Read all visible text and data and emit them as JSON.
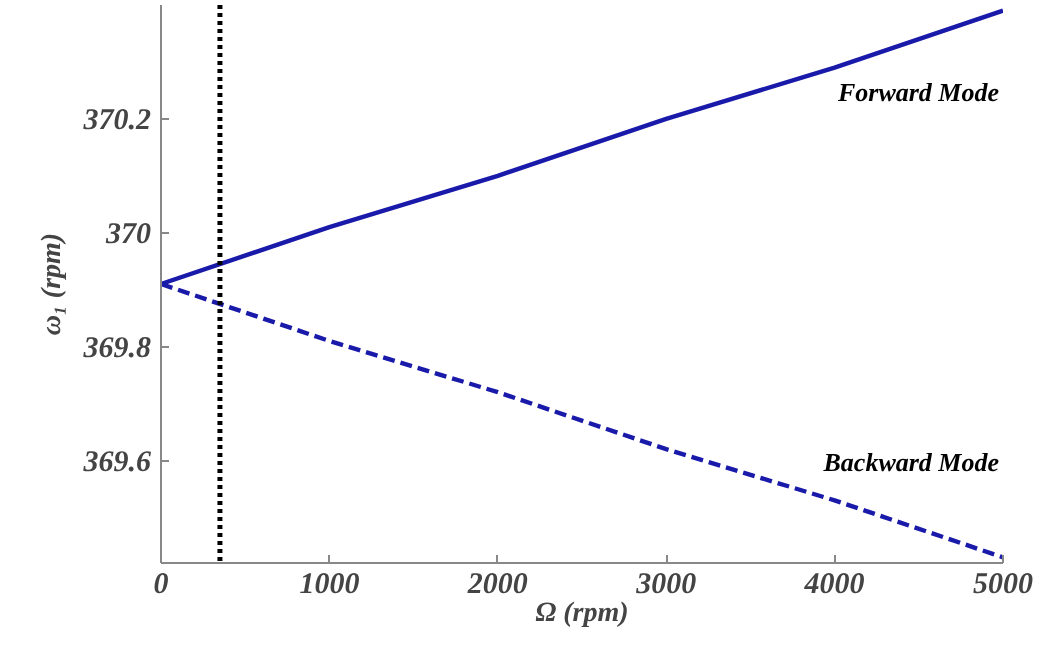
{
  "chart_data": {
    "type": "line",
    "xlabel": "Ω (rpm)",
    "ylabel": "ω₁ (rpm)",
    "x": [
      0,
      1000,
      2000,
      3000,
      4000,
      5000
    ],
    "series": [
      {
        "name": "Forward Mode",
        "color": "#1a1aaa",
        "line_style": "solid",
        "values": [
          369.91,
          370.01,
          370.1,
          370.2,
          370.29,
          370.39
        ]
      },
      {
        "name": "Backward Mode",
        "color": "#1a1aaa",
        "line_style": "dashed",
        "values": [
          369.91,
          369.81,
          369.72,
          369.62,
          369.53,
          369.43
        ]
      }
    ],
    "xlim": [
      0,
      5000
    ],
    "ylim": [
      369.42,
      370.4
    ],
    "xticks": [
      0,
      1000,
      2000,
      3000,
      4000,
      5000
    ],
    "yticks": [
      369.6,
      369.8,
      370,
      370.2
    ],
    "ref_lines": [
      {
        "axis": "x",
        "value": 350,
        "color": "#000000",
        "line_style": "dotted"
      }
    ],
    "grid": false,
    "marker": "none"
  }
}
